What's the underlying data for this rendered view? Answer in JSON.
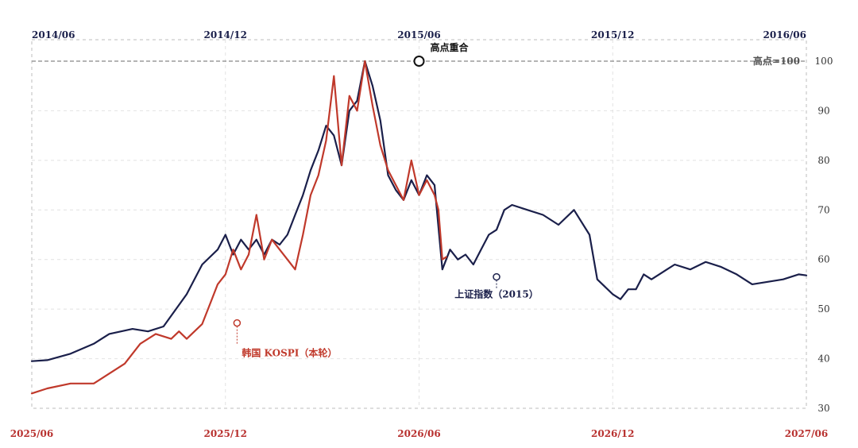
{
  "chart_data": {
    "type": "line",
    "title": "",
    "ylim": [
      30,
      100
    ],
    "yticks": [
      30,
      40,
      50,
      60,
      70,
      80,
      90,
      100
    ],
    "top_axis": {
      "ticks": [
        "2014/06",
        "2014/12",
        "2015/06",
        "2015/12",
        "2016/06"
      ]
    },
    "bottom_axis": {
      "ticks": [
        "2025/06",
        "2025/12",
        "2026/06",
        "2026/12",
        "2027/06"
      ]
    },
    "reference_line": {
      "value": 100,
      "label": "高点=100"
    },
    "annotations": {
      "peak": "高点重合",
      "sse_label": "上证指数（2015）",
      "kospi_label": "韩国 KOSPI（本轮）"
    },
    "series": [
      {
        "name": "上证指数（2015）",
        "color": "#1a1f4a",
        "x": [
          0,
          0.02,
          0.05,
          0.08,
          0.1,
          0.13,
          0.15,
          0.17,
          0.2,
          0.22,
          0.24,
          0.25,
          0.26,
          0.27,
          0.28,
          0.29,
          0.3,
          0.31,
          0.32,
          0.33,
          0.34,
          0.35,
          0.36,
          0.37,
          0.38,
          0.39,
          0.4,
          0.41,
          0.42,
          0.43,
          0.44,
          0.45,
          0.46,
          0.47,
          0.48,
          0.49,
          0.5,
          0.51,
          0.52,
          0.53,
          0.54,
          0.55,
          0.56,
          0.57,
          0.58,
          0.59,
          0.6,
          0.61,
          0.62,
          0.64,
          0.66,
          0.68,
          0.7,
          0.72,
          0.73,
          0.75,
          0.76,
          0.77,
          0.78,
          0.79,
          0.8,
          0.81,
          0.82,
          0.83,
          0.85,
          0.87,
          0.89,
          0.91,
          0.93,
          0.95,
          0.97,
          0.99,
          1.0
        ],
        "values": [
          39.5,
          39.7,
          41,
          43,
          45,
          46,
          45.5,
          46.5,
          53,
          59,
          62,
          65,
          61,
          64,
          62,
          64,
          61,
          64,
          63,
          65,
          69,
          73,
          78,
          82,
          87,
          85,
          79,
          90,
          92,
          100,
          95,
          88,
          77,
          74,
          72,
          76,
          73,
          77,
          75,
          58,
          62,
          60,
          61,
          59,
          62,
          65,
          66,
          70,
          71,
          70,
          69,
          67,
          70,
          65,
          56,
          53,
          52,
          54,
          54,
          57,
          56,
          57,
          58,
          59,
          58,
          59.5,
          58.5,
          57,
          55,
          55.5,
          56,
          57,
          56.8
        ]
      },
      {
        "name": "韩国 KOSPI（本轮）",
        "color": "#c0392b",
        "x": [
          0,
          0.02,
          0.05,
          0.08,
          0.1,
          0.12,
          0.14,
          0.16,
          0.18,
          0.19,
          0.2,
          0.21,
          0.22,
          0.23,
          0.24,
          0.25,
          0.26,
          0.27,
          0.28,
          0.29,
          0.3,
          0.31,
          0.32,
          0.33,
          0.34,
          0.35,
          0.36,
          0.37,
          0.38,
          0.39,
          0.4,
          0.41,
          0.42,
          0.43,
          0.44,
          0.45,
          0.46,
          0.47,
          0.48,
          0.49,
          0.5,
          0.51,
          0.52,
          0.525,
          0.53,
          0.535
        ],
        "values": [
          33,
          34,
          35,
          35,
          37,
          39,
          43,
          45,
          44,
          45.5,
          44,
          45.5,
          47,
          51,
          55,
          57,
          62,
          58,
          61,
          69,
          60,
          64,
          62,
          60,
          58,
          65,
          73,
          77,
          84,
          97,
          79,
          93,
          90,
          100,
          91,
          83,
          78,
          75,
          72,
          80,
          73,
          76,
          73,
          70,
          60,
          60.5
        ]
      }
    ]
  }
}
